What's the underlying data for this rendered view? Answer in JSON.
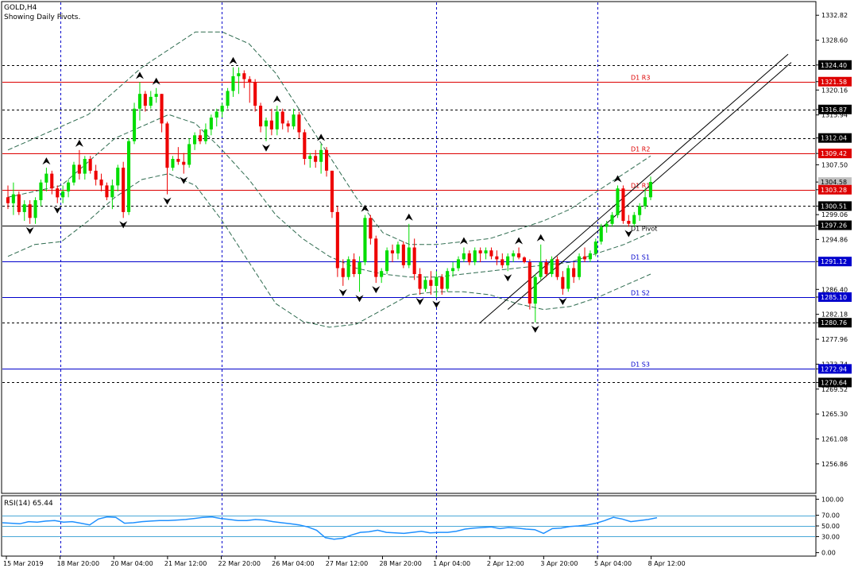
{
  "header": {
    "symbol": "GOLD,H4",
    "subtitle": "Showing Daily Pivots."
  },
  "colors": {
    "bull": "#00dd00",
    "bear": "#ee0000",
    "pivot_line": "#000000",
    "resistance_line": "#dd0000",
    "support_line": "#0000cc",
    "dashed_level": "#000000",
    "rsi_line": "#1e90ff",
    "grid_vertical": "#0000cc",
    "band": "#2e6b4f"
  },
  "chart_data": [
    {
      "type": "candlestick",
      "title": "GOLD,H4",
      "subtitle": "Showing Daily Pivots.",
      "ylim": [
        1252.0,
        1335.0
      ],
      "y_ticks": [
        1332.82,
        1328.6,
        1324.4,
        1321.58,
        1320.16,
        1316.87,
        1315.94,
        1312.04,
        1309.42,
        1307.5,
        1304.58,
        1303.28,
        1300.51,
        1299.06,
        1297.26,
        1294.86,
        1291.12,
        1286.4,
        1285.1,
        1282.18,
        1280.76,
        1277.96,
        1273.74,
        1272.94,
        1270.64,
        1269.52,
        1265.3,
        1261.08,
        1256.86
      ],
      "highlighted_price_labels": [
        {
          "value": 1324.4,
          "style": "black"
        },
        {
          "value": 1321.58,
          "style": "red"
        },
        {
          "value": 1316.87,
          "style": "black"
        },
        {
          "value": 1312.04,
          "style": "black"
        },
        {
          "value": 1309.42,
          "style": "red"
        },
        {
          "value": 1304.58,
          "style": "grey"
        },
        {
          "value": 1303.28,
          "style": "red"
        },
        {
          "value": 1300.51,
          "style": "black"
        },
        {
          "value": 1297.26,
          "style": "black"
        },
        {
          "value": 1291.12,
          "style": "blue"
        },
        {
          "value": 1285.1,
          "style": "blue"
        },
        {
          "value": 1280.76,
          "style": "black"
        },
        {
          "value": 1272.94,
          "style": "blue"
        },
        {
          "value": 1270.64,
          "style": "black"
        }
      ],
      "pivot_levels": [
        {
          "label": "D1 R3",
          "value": 1321.58,
          "kind": "resistance"
        },
        {
          "label": "D1 R2",
          "value": 1309.42,
          "kind": "resistance"
        },
        {
          "label": "D1 R1",
          "value": 1303.28,
          "kind": "resistance"
        },
        {
          "label": "D1 Pivot",
          "value": 1297.26,
          "kind": "pivot"
        },
        {
          "label": "D1 S1",
          "value": 1291.12,
          "kind": "support"
        },
        {
          "label": "D1 S2",
          "value": 1285.1,
          "kind": "support"
        },
        {
          "label": "D1 S3",
          "value": 1272.94,
          "kind": "support"
        }
      ],
      "dashed_levels": [
        1324.4,
        1316.87,
        1312.04,
        1300.51,
        1280.76,
        1270.64
      ],
      "x_labels": [
        "15 Mar 2019",
        "18 Mar 20:00",
        "20 Mar 04:00",
        "21 Mar 12:00",
        "22 Mar 20:00",
        "26 Mar 04:00",
        "27 Mar 12:00",
        "28 Mar 20:00",
        "1 Apr 04:00",
        "2 Apr 12:00",
        "3 Apr 20:00",
        "5 Apr 04:00",
        "8 Apr 12:00"
      ],
      "day_separators": [
        "18 Mar 20:00",
        "22 Mar 20:00",
        "1 Apr 04:00",
        "5 Apr 04:00"
      ],
      "candles_ohlc": [
        [
          1302.0,
          1304.0,
          1300.0,
          1301.0
        ],
        [
          1301.0,
          1304.5,
          1299.0,
          1302.5
        ],
        [
          1302.5,
          1303.0,
          1299.0,
          1299.5
        ],
        [
          1299.5,
          1301.5,
          1298.0,
          1300.8
        ],
        [
          1300.8,
          1301.5,
          1297.5,
          1298.5
        ],
        [
          1298.5,
          1302.0,
          1297.5,
          1301.5
        ],
        [
          1301.5,
          1305.0,
          1300.5,
          1304.5
        ],
        [
          1304.5,
          1307.0,
          1303.0,
          1306.0
        ],
        [
          1306.0,
          1306.5,
          1302.5,
          1303.5
        ],
        [
          1303.5,
          1304.0,
          1301.0,
          1302.0
        ],
        [
          1302.0,
          1304.0,
          1301.0,
          1303.0
        ],
        [
          1303.0,
          1305.0,
          1302.0,
          1304.5
        ],
        [
          1304.5,
          1308.0,
          1304.0,
          1307.5
        ],
        [
          1307.5,
          1310.0,
          1305.0,
          1306.0
        ],
        [
          1306.0,
          1309.0,
          1305.0,
          1308.5
        ],
        [
          1308.5,
          1309.0,
          1306.0,
          1306.5
        ],
        [
          1306.5,
          1307.5,
          1304.0,
          1305.0
        ],
        [
          1305.0,
          1306.0,
          1303.0,
          1304.0
        ],
        [
          1304.0,
          1304.5,
          1301.5,
          1302.0
        ],
        [
          1302.0,
          1305.0,
          1300.0,
          1304.0
        ],
        [
          1304.0,
          1307.5,
          1303.0,
          1307.0
        ],
        [
          1307.0,
          1308.0,
          1298.5,
          1299.5
        ],
        [
          1299.5,
          1312.0,
          1299.0,
          1311.5
        ],
        [
          1311.5,
          1318.0,
          1311.0,
          1317.0
        ],
        [
          1317.0,
          1321.5,
          1315.0,
          1319.5
        ],
        [
          1319.5,
          1320.0,
          1316.5,
          1317.5
        ],
        [
          1317.5,
          1320.0,
          1317.0,
          1319.0
        ],
        [
          1319.0,
          1320.5,
          1318.0,
          1319.5
        ],
        [
          1319.5,
          1319.5,
          1313.0,
          1314.5
        ],
        [
          1314.5,
          1314.8,
          1302.5,
          1307.0
        ],
        [
          1307.0,
          1309.0,
          1306.5,
          1308.5
        ],
        [
          1308.5,
          1310.5,
          1307.5,
          1308.0
        ],
        [
          1308.0,
          1309.5,
          1306.0,
          1307.5
        ],
        [
          1307.5,
          1312.0,
          1307.0,
          1311.0
        ],
        [
          1311.0,
          1313.0,
          1310.0,
          1312.5
        ],
        [
          1312.5,
          1313.5,
          1311.0,
          1311.5
        ],
        [
          1311.5,
          1314.5,
          1311.0,
          1313.5
        ],
        [
          1313.5,
          1316.0,
          1312.5,
          1315.5
        ],
        [
          1315.5,
          1317.0,
          1314.0,
          1316.5
        ],
        [
          1316.5,
          1318.0,
          1315.5,
          1317.5
        ],
        [
          1317.5,
          1320.5,
          1317.0,
          1320.0
        ],
        [
          1320.0,
          1324.0,
          1319.0,
          1322.5
        ],
        [
          1322.5,
          1324.0,
          1319.5,
          1323.0
        ],
        [
          1323.0,
          1323.5,
          1320.5,
          1322.0
        ],
        [
          1322.0,
          1322.5,
          1318.0,
          1321.5
        ],
        [
          1321.5,
          1322.0,
          1316.5,
          1317.5
        ],
        [
          1317.5,
          1318.0,
          1313.0,
          1314.0
        ],
        [
          1314.0,
          1315.5,
          1311.5,
          1315.0
        ],
        [
          1315.0,
          1317.0,
          1312.5,
          1313.5
        ],
        [
          1313.5,
          1317.5,
          1312.5,
          1316.5
        ],
        [
          1316.5,
          1317.0,
          1313.5,
          1314.5
        ],
        [
          1314.5,
          1315.0,
          1313.0,
          1314.0
        ],
        [
          1314.0,
          1317.0,
          1313.5,
          1316.0
        ],
        [
          1316.0,
          1316.5,
          1312.0,
          1313.0
        ],
        [
          1313.0,
          1313.5,
          1307.5,
          1308.5
        ],
        [
          1308.5,
          1309.5,
          1307.0,
          1309.0
        ],
        [
          1309.0,
          1310.0,
          1307.0,
          1308.0
        ],
        [
          1308.0,
          1311.0,
          1306.0,
          1310.0
        ],
        [
          1310.0,
          1310.5,
          1305.5,
          1306.5
        ],
        [
          1306.5,
          1306.5,
          1298.5,
          1299.5
        ],
        [
          1299.5,
          1300.5,
          1288.5,
          1290.0
        ],
        [
          1290.0,
          1291.5,
          1287.0,
          1288.5
        ],
        [
          1288.5,
          1292.0,
          1288.0,
          1291.5
        ],
        [
          1291.5,
          1292.5,
          1288.5,
          1289.0
        ],
        [
          1289.0,
          1292.0,
          1286.0,
          1291.0
        ],
        [
          1291.0,
          1299.0,
          1290.5,
          1298.5
        ],
        [
          1298.5,
          1299.0,
          1294.0,
          1295.0
        ],
        [
          1295.0,
          1295.5,
          1287.5,
          1288.5
        ],
        [
          1288.5,
          1290.0,
          1287.5,
          1289.5
        ],
        [
          1289.5,
          1293.5,
          1289.0,
          1293.0
        ],
        [
          1293.0,
          1294.0,
          1291.0,
          1292.5
        ],
        [
          1292.5,
          1294.5,
          1291.5,
          1294.0
        ],
        [
          1294.0,
          1294.5,
          1290.0,
          1290.5
        ],
        [
          1290.5,
          1297.5,
          1290.0,
          1293.5
        ],
        [
          1293.5,
          1295.0,
          1288.0,
          1289.0
        ],
        [
          1289.0,
          1290.0,
          1285.5,
          1286.5
        ],
        [
          1286.5,
          1288.5,
          1286.0,
          1288.0
        ],
        [
          1288.0,
          1289.5,
          1285.5,
          1287.0
        ],
        [
          1287.0,
          1289.5,
          1285.0,
          1288.5
        ],
        [
          1288.5,
          1289.0,
          1285.5,
          1286.5
        ],
        [
          1286.5,
          1290.0,
          1286.0,
          1289.5
        ],
        [
          1289.5,
          1291.0,
          1288.5,
          1290.0
        ],
        [
          1290.0,
          1292.0,
          1289.5,
          1291.5
        ],
        [
          1291.5,
          1293.5,
          1291.0,
          1292.5
        ],
        [
          1292.5,
          1293.0,
          1290.5,
          1291.0
        ],
        [
          1291.0,
          1293.5,
          1290.5,
          1293.0
        ],
        [
          1293.0,
          1293.5,
          1291.0,
          1292.5
        ],
        [
          1292.5,
          1293.5,
          1291.5,
          1293.0
        ],
        [
          1293.0,
          1293.5,
          1291.5,
          1292.0
        ],
        [
          1292.0,
          1293.0,
          1290.5,
          1291.5
        ],
        [
          1291.5,
          1292.5,
          1290.0,
          1290.5
        ],
        [
          1290.5,
          1292.5,
          1289.5,
          1292.0
        ],
        [
          1292.0,
          1293.0,
          1291.0,
          1292.5
        ],
        [
          1292.5,
          1293.5,
          1291.5,
          1291.8
        ],
        [
          1291.8,
          1292.0,
          1290.8,
          1291.0
        ],
        [
          1291.0,
          1291.5,
          1283.0,
          1284.0
        ],
        [
          1284.0,
          1289.0,
          1280.8,
          1288.5
        ],
        [
          1288.5,
          1294.0,
          1288.0,
          1291.0
        ],
        [
          1291.0,
          1291.5,
          1288.5,
          1289.0
        ],
        [
          1289.0,
          1292.0,
          1288.5,
          1291.5
        ],
        [
          1291.5,
          1292.0,
          1288.0,
          1288.5
        ],
        [
          1288.5,
          1289.5,
          1285.5,
          1286.5
        ],
        [
          1286.5,
          1290.5,
          1286.0,
          1290.0
        ],
        [
          1290.0,
          1291.0,
          1287.5,
          1288.5
        ],
        [
          1288.5,
          1292.5,
          1288.0,
          1292.0
        ],
        [
          1292.0,
          1293.5,
          1291.0,
          1291.5
        ],
        [
          1291.5,
          1293.0,
          1291.0,
          1292.5
        ],
        [
          1292.5,
          1295.0,
          1292.0,
          1294.5
        ],
        [
          1294.5,
          1297.5,
          1294.0,
          1297.0
        ],
        [
          1297.0,
          1298.0,
          1296.0,
          1297.5
        ],
        [
          1297.5,
          1299.5,
          1297.0,
          1299.0
        ],
        [
          1299.0,
          1304.0,
          1298.5,
          1303.5
        ],
        [
          1303.5,
          1304.0,
          1297.5,
          1298.0
        ],
        [
          1298.0,
          1299.0,
          1297.0,
          1297.5
        ],
        [
          1297.5,
          1299.5,
          1297.0,
          1299.0
        ],
        [
          1299.0,
          1301.0,
          1298.0,
          1300.5
        ],
        [
          1300.5,
          1303.5,
          1300.0,
          1302.0
        ],
        [
          1302.0,
          1305.5,
          1301.5,
          1304.6
        ]
      ],
      "bollinger_upper": [
        1310.0,
        1312.0,
        1314.0,
        1316.0,
        1320.0,
        1324.0,
        1327.0,
        1330.0,
        1330.0,
        1328.0,
        1323.0,
        1316.0,
        1309.0,
        1302.0,
        1296.0,
        1294.0,
        1294.0,
        1294.5,
        1295.0,
        1296.5,
        1298.0,
        1300.0,
        1303.0,
        1306.0,
        1309.0
      ],
      "bollinger_middle": [
        1302.0,
        1303.0,
        1304.0,
        1308.0,
        1312.0,
        1314.0,
        1316.0,
        1314.5,
        1310.0,
        1305.0,
        1299.0,
        1295.0,
        1292.0,
        1290.0,
        1289.0,
        1288.5,
        1288.5,
        1289.0,
        1289.5,
        1290.0,
        1290.5,
        1291.0,
        1292.5,
        1294.0,
        1296.0
      ],
      "bollinger_lower": [
        1292.0,
        1294.0,
        1294.5,
        1298.0,
        1302.0,
        1305.0,
        1306.0,
        1304.0,
        1298.0,
        1291.0,
        1284.0,
        1281.0,
        1280.0,
        1280.5,
        1283.0,
        1285.5,
        1286.0,
        1286.0,
        1285.5,
        1284.0,
        1283.0,
        1283.5,
        1285.0,
        1287.0,
        1289.0
      ],
      "trend_channel": [
        {
          "from": [
            "3 Apr 20:00",
            1280.8
          ],
          "to": "upper-right",
          "slope": "rising"
        },
        {
          "from": [
            "5 Apr 04:00",
            1283.0
          ],
          "to": "upper-right",
          "slope": "rising"
        }
      ],
      "fractal_marker_count": 38,
      "current_price": 1304.58
    },
    {
      "type": "line",
      "title": "RSI(14) 65.44",
      "ylim": [
        -5,
        105
      ],
      "y_ticks": [
        100.0,
        70.0,
        50.0,
        30.0,
        0.0
      ],
      "levels": [
        70,
        50,
        30
      ],
      "series": [
        {
          "name": "RSI(14)",
          "values": [
            56,
            55,
            54,
            58,
            57,
            59,
            60,
            57,
            58,
            55,
            52,
            63,
            67,
            66,
            55,
            56,
            58,
            59,
            60,
            60,
            61,
            62,
            64,
            66,
            67,
            64,
            62,
            60,
            60,
            62,
            61,
            58,
            56,
            54,
            52,
            48,
            42,
            28,
            25,
            27,
            33,
            38,
            39,
            42,
            38,
            37,
            36,
            38,
            40,
            37,
            38,
            38,
            40,
            44,
            46,
            47,
            48,
            45,
            47,
            46,
            44,
            43,
            36,
            45,
            46,
            49,
            50,
            52,
            55,
            60,
            66,
            63,
            58,
            60,
            62,
            65.44
          ]
        }
      ]
    }
  ]
}
